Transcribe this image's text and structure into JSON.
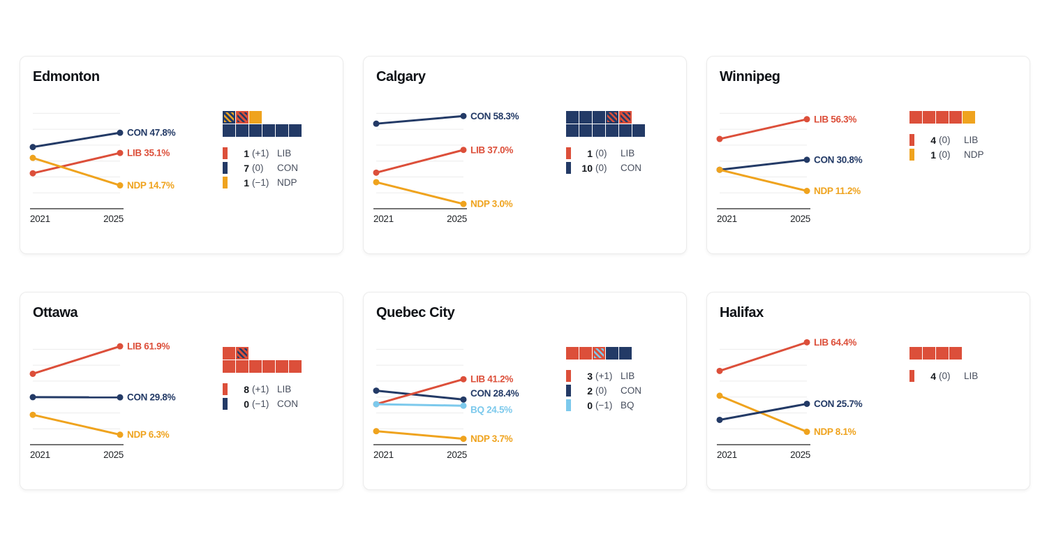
{
  "colors": {
    "LIB": "#DC4F3A",
    "CON": "#233A66",
    "NDP": "#EFA31E",
    "BQ": "#7CC9EC",
    "gridline": "#ececec",
    "axis": "#737373",
    "tick_text": "#1f2226",
    "title_text": "#0e1116",
    "legend_count_text": "#15181d",
    "legend_text": "#474e5d",
    "card_border": "#ebebeb"
  },
  "chart_data": [
    {
      "type": "slope",
      "title": "Edmonton",
      "x": [
        "2021",
        "2025"
      ],
      "ylim": [
        0,
        65
      ],
      "y_gridlines": [
        10,
        20,
        30,
        40,
        50,
        60
      ],
      "series": [
        {
          "party": "CON",
          "values": [
            38.8,
            47.8
          ],
          "label": "CON 47.8%",
          "dy": 0
        },
        {
          "party": "LIB",
          "values": [
            22.3,
            35.1
          ],
          "label": "LIB 35.1%",
          "dy": 0
        },
        {
          "party": "NDP",
          "values": [
            32.0,
            14.7
          ],
          "label": "NDP 14.7%",
          "dy": 0
        }
      ],
      "seats_rows": [
        [
          {
            "p": "CON",
            "was": "NDP"
          },
          {
            "p": "LIB",
            "was": "CON"
          },
          {
            "p": "NDP"
          }
        ],
        [
          {
            "p": "CON"
          },
          {
            "p": "CON"
          },
          {
            "p": "CON"
          },
          {
            "p": "CON"
          },
          {
            "p": "CON"
          },
          {
            "p": "CON"
          }
        ]
      ],
      "legend": [
        {
          "count": "1",
          "change": "(+1)",
          "party": "LIB"
        },
        {
          "count": "7",
          "change": "(0)",
          "party": "CON"
        },
        {
          "count": "1",
          "change": "(−1)",
          "party": "NDP"
        }
      ]
    },
    {
      "type": "slope",
      "title": "Calgary",
      "x": [
        "2021",
        "2025"
      ],
      "ylim": [
        0,
        65
      ],
      "y_gridlines": [
        10,
        20,
        30,
        40,
        50,
        60
      ],
      "series": [
        {
          "party": "CON",
          "values": [
            53.5,
            58.3
          ],
          "label": "CON 58.3%",
          "dy": 0
        },
        {
          "party": "LIB",
          "values": [
            22.7,
            37.0
          ],
          "label": "LIB 37.0%",
          "dy": 0
        },
        {
          "party": "NDP",
          "values": [
            16.7,
            3.0
          ],
          "label": "NDP 3.0%",
          "dy": 0
        }
      ],
      "seats_rows": [
        [
          {
            "p": "CON"
          },
          {
            "p": "CON"
          },
          {
            "p": "CON"
          },
          {
            "p": "CON",
            "was": "LIB"
          },
          {
            "p": "LIB",
            "was": "CON"
          }
        ],
        [
          {
            "p": "CON"
          },
          {
            "p": "CON"
          },
          {
            "p": "CON"
          },
          {
            "p": "CON"
          },
          {
            "p": "CON"
          },
          {
            "p": "CON"
          }
        ]
      ],
      "legend": [
        {
          "count": "1",
          "change": "(0)",
          "party": "LIB"
        },
        {
          "count": "10",
          "change": "(0)",
          "party": "CON"
        }
      ]
    },
    {
      "type": "slope",
      "title": "Winnipeg",
      "x": [
        "2021",
        "2025"
      ],
      "ylim": [
        0,
        65
      ],
      "y_gridlines": [
        10,
        20,
        30,
        40,
        50,
        60
      ],
      "series": [
        {
          "party": "LIB",
          "values": [
            43.9,
            56.3
          ],
          "label": "LIB 56.3%",
          "dy": 0
        },
        {
          "party": "CON",
          "values": [
            24.5,
            30.8
          ],
          "label": "CON 30.8%",
          "dy": 0
        },
        {
          "party": "NDP",
          "values": [
            24.5,
            11.2
          ],
          "label": "NDP 11.2%",
          "dy": 0
        }
      ],
      "seats_rows": [
        [
          {
            "p": "LIB"
          },
          {
            "p": "LIB"
          },
          {
            "p": "LIB"
          },
          {
            "p": "LIB"
          },
          {
            "p": "NDP"
          }
        ]
      ],
      "legend": [
        {
          "count": "4",
          "change": "(0)",
          "party": "LIB"
        },
        {
          "count": "1",
          "change": "(0)",
          "party": "NDP"
        }
      ]
    },
    {
      "type": "slope",
      "title": "Ottawa",
      "x": [
        "2021",
        "2025"
      ],
      "ylim": [
        0,
        65
      ],
      "y_gridlines": [
        10,
        20,
        30,
        40,
        50,
        60
      ],
      "series": [
        {
          "party": "LIB",
          "values": [
            44.6,
            61.9
          ],
          "label": "LIB 61.9%",
          "dy": 0
        },
        {
          "party": "CON",
          "values": [
            29.9,
            29.8
          ],
          "label": "CON 29.8%",
          "dy": 0
        },
        {
          "party": "NDP",
          "values": [
            18.8,
            6.3
          ],
          "label": "NDP 6.3%",
          "dy": 0
        }
      ],
      "seats_rows": [
        [
          {
            "p": "LIB"
          },
          {
            "p": "LIB",
            "was": "CON"
          }
        ],
        [
          {
            "p": "LIB"
          },
          {
            "p": "LIB"
          },
          {
            "p": "LIB"
          },
          {
            "p": "LIB"
          },
          {
            "p": "LIB"
          },
          {
            "p": "LIB"
          }
        ]
      ],
      "legend": [
        {
          "count": "8",
          "change": "(+1)",
          "party": "LIB"
        },
        {
          "count": "0",
          "change": "(−1)",
          "party": "CON"
        }
      ]
    },
    {
      "type": "slope",
      "title": "Quebec City",
      "x": [
        "2021",
        "2025"
      ],
      "ylim": [
        0,
        65
      ],
      "y_gridlines": [
        10,
        20,
        30,
        40,
        50,
        60
      ],
      "series": [
        {
          "party": "NDP",
          "values": [
            8.5,
            3.7
          ],
          "label": "NDP 3.7%",
          "dy": 0
        },
        {
          "party": "CON",
          "values": [
            34.0,
            28.4
          ],
          "label": "CON 28.4%",
          "dy": -9
        },
        {
          "party": "LIB",
          "values": [
            25.5,
            41.2
          ],
          "label": "LIB 41.2%",
          "dy": 0
        },
        {
          "party": "BQ",
          "values": [
            25.5,
            24.5
          ],
          "label": "BQ 24.5%",
          "dy": 6
        }
      ],
      "seats_rows": [
        [
          {
            "p": "LIB"
          },
          {
            "p": "LIB"
          },
          {
            "p": "LIB",
            "was": "BQ"
          },
          {
            "p": "CON"
          },
          {
            "p": "CON"
          }
        ]
      ],
      "legend": [
        {
          "count": "3",
          "change": "(+1)",
          "party": "LIB"
        },
        {
          "count": "2",
          "change": "(0)",
          "party": "CON"
        },
        {
          "count": "0",
          "change": "(−1)",
          "party": "BQ"
        }
      ]
    },
    {
      "type": "slope",
      "title": "Halifax",
      "x": [
        "2021",
        "2025"
      ],
      "ylim": [
        0,
        65
      ],
      "y_gridlines": [
        10,
        20,
        30,
        40,
        50,
        60
      ],
      "series": [
        {
          "party": "LIB",
          "values": [
            46.4,
            64.4
          ],
          "label": "LIB 64.4%",
          "dy": 0
        },
        {
          "party": "NDP",
          "values": [
            30.8,
            8.1
          ],
          "label": "NDP 8.1%",
          "dy": 0
        },
        {
          "party": "CON",
          "values": [
            15.6,
            25.7
          ],
          "label": "CON 25.7%",
          "dy": 0
        }
      ],
      "seats_rows": [
        [
          {
            "p": "LIB"
          },
          {
            "p": "LIB"
          },
          {
            "p": "LIB"
          },
          {
            "p": "LIB"
          }
        ]
      ],
      "legend": [
        {
          "count": "4",
          "change": "(0)",
          "party": "LIB"
        }
      ]
    }
  ]
}
